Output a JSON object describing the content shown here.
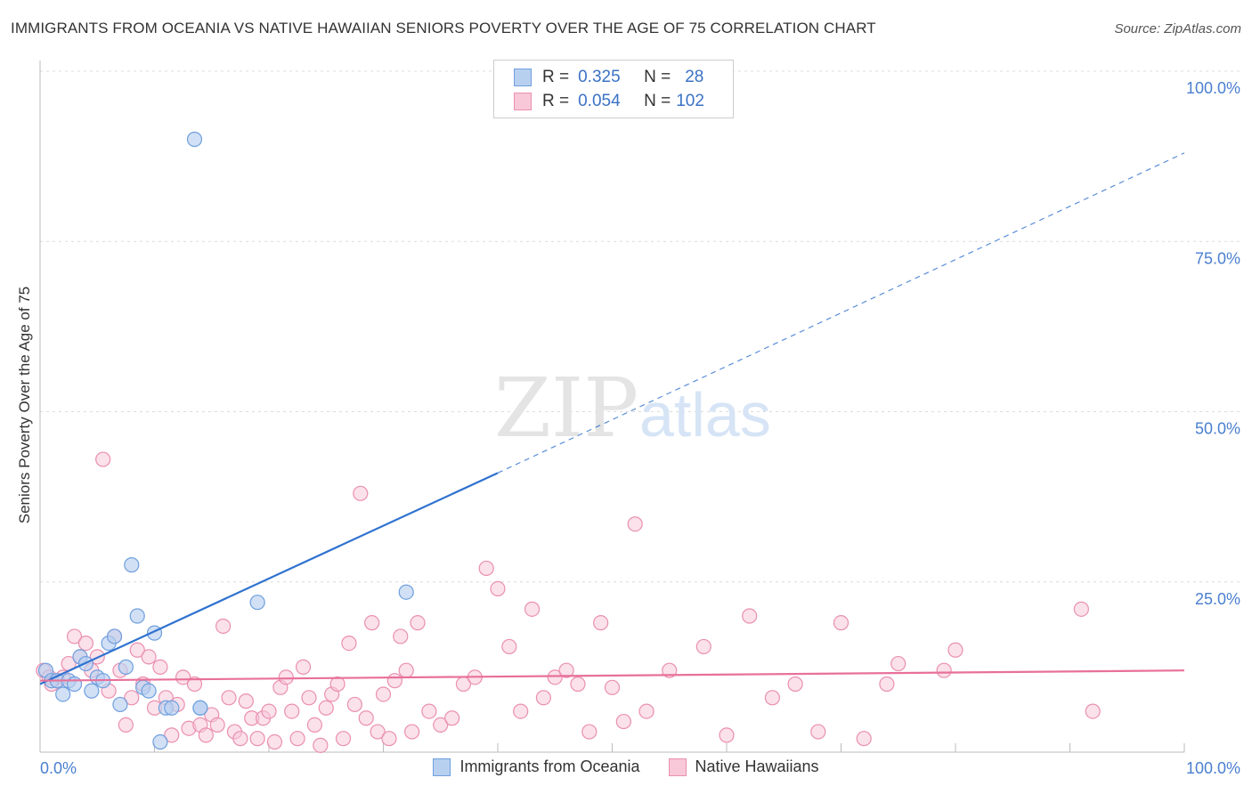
{
  "title": "IMMIGRANTS FROM OCEANIA VS NATIVE HAWAIIAN SENIORS POVERTY OVER THE AGE OF 75 CORRELATION CHART",
  "source": "Source: ZipAtlas.com",
  "watermark": {
    "zip": "ZIP",
    "atlas": "atlas"
  },
  "legend": {
    "r_label": "R =",
    "n_label": "N =",
    "series1": {
      "r": "0.325",
      "n": "28"
    },
    "series2": {
      "r": "0.054",
      "n": "102"
    }
  },
  "bottom_legend": {
    "series1": "Immigrants from Oceania",
    "series2": "Native Hawaiians"
  },
  "colors": {
    "blue_fill": "#b8d0f0",
    "blue_stroke": "#6f9fde",
    "blue_line": "#2f72d0",
    "pink_fill": "#f8c8d8",
    "pink_stroke": "#ea8fb0",
    "pink_line": "#e8709a",
    "axis_text": "#4a7fd0",
    "grid": "#dcdcdc"
  },
  "chart_data": {
    "type": "scatter",
    "title": "IMMIGRANTS FROM OCEANIA VS NATIVE HAWAIIAN SENIORS POVERTY OVER THE AGE OF 75 CORRELATION CHART",
    "xlabel": "",
    "ylabel": "Seniors Poverty Over the Age of 75",
    "xlim": [
      0,
      100
    ],
    "ylim": [
      0,
      100
    ],
    "x_tick_labels": [
      "0.0%",
      "100.0%"
    ],
    "y_ticks": [
      25,
      50,
      75,
      100
    ],
    "y_tick_labels": [
      "25.0%",
      "50.0%",
      "75.0%",
      "100.0%"
    ],
    "series": [
      {
        "name": "Immigrants from Oceania",
        "x": [
          0.5,
          1,
          1.5,
          2,
          2.5,
          3,
          3.5,
          4,
          4.5,
          5,
          5.5,
          6,
          6.5,
          7,
          7.5,
          8,
          8.5,
          9,
          9.5,
          10,
          10.5,
          11,
          11.5,
          13.5,
          14,
          14,
          19,
          32
        ],
        "y": [
          12,
          10.5,
          10.5,
          8.5,
          10.5,
          10,
          14,
          13,
          9,
          11,
          10.5,
          16,
          17,
          7,
          12.5,
          27.5,
          20,
          9.5,
          9,
          17.5,
          1.5,
          6.5,
          6.5,
          90,
          6.5,
          6.5,
          22,
          23.5
        ],
        "trend": {
          "x": [
            0,
            40
          ],
          "y": [
            10,
            41
          ]
        },
        "trend_dashed": {
          "x": [
            40,
            100
          ],
          "y": [
            41,
            88
          ]
        }
      },
      {
        "name": "Native Hawaiians",
        "x": [
          0.3,
          0.8,
          1,
          1.5,
          2,
          2.5,
          3,
          3.5,
          4,
          4.5,
          5,
          5.5,
          6,
          6.5,
          7,
          7.5,
          8,
          8.5,
          9,
          9.5,
          10,
          10.5,
          11,
          11.5,
          12,
          12.5,
          13,
          13.5,
          14,
          14.5,
          15,
          15.5,
          16,
          16.5,
          17,
          17.5,
          18,
          18.5,
          19,
          19.5,
          20,
          20.5,
          21,
          21.5,
          22,
          22.5,
          23,
          23.5,
          24,
          24.5,
          25,
          25.5,
          26,
          26.5,
          27,
          27.5,
          28,
          28.5,
          29,
          29.5,
          30,
          30.5,
          31,
          31.5,
          32,
          32.5,
          33,
          34,
          35,
          36,
          37,
          38,
          39,
          40,
          41,
          42,
          43,
          44,
          45,
          46,
          47,
          48,
          49,
          50,
          51,
          52,
          53,
          55,
          58,
          60,
          62,
          64,
          66,
          68,
          70,
          72,
          74,
          75,
          79,
          80,
          91,
          92
        ],
        "y": [
          12,
          11,
          10,
          10.5,
          11,
          13,
          17,
          14,
          16,
          12,
          14,
          43,
          9,
          17,
          12,
          4,
          8,
          15,
          10,
          14,
          6.5,
          12.5,
          8,
          2.5,
          7,
          11,
          3.5,
          10,
          4,
          2.5,
          5.5,
          4,
          18.5,
          8,
          3,
          2,
          7.5,
          5,
          2,
          5,
          6,
          1.5,
          9.5,
          11,
          6,
          2,
          12.5,
          8,
          4,
          1,
          6.5,
          8.5,
          10,
          2,
          16,
          7,
          38,
          5,
          19,
          3,
          8.5,
          2,
          10.5,
          17,
          12,
          3,
          19,
          6,
          4,
          5,
          10,
          11,
          27,
          24,
          15.5,
          6,
          21,
          8,
          11,
          12,
          10,
          3,
          19,
          9.5,
          4.5,
          33.5,
          6,
          12,
          15.5,
          2.5,
          20,
          8,
          10,
          3,
          19,
          2,
          10,
          13,
          12,
          15,
          21,
          6
        ]
      }
    ],
    "pink_trend": {
      "x": [
        0,
        100
      ],
      "y": [
        10.5,
        12
      ]
    }
  }
}
